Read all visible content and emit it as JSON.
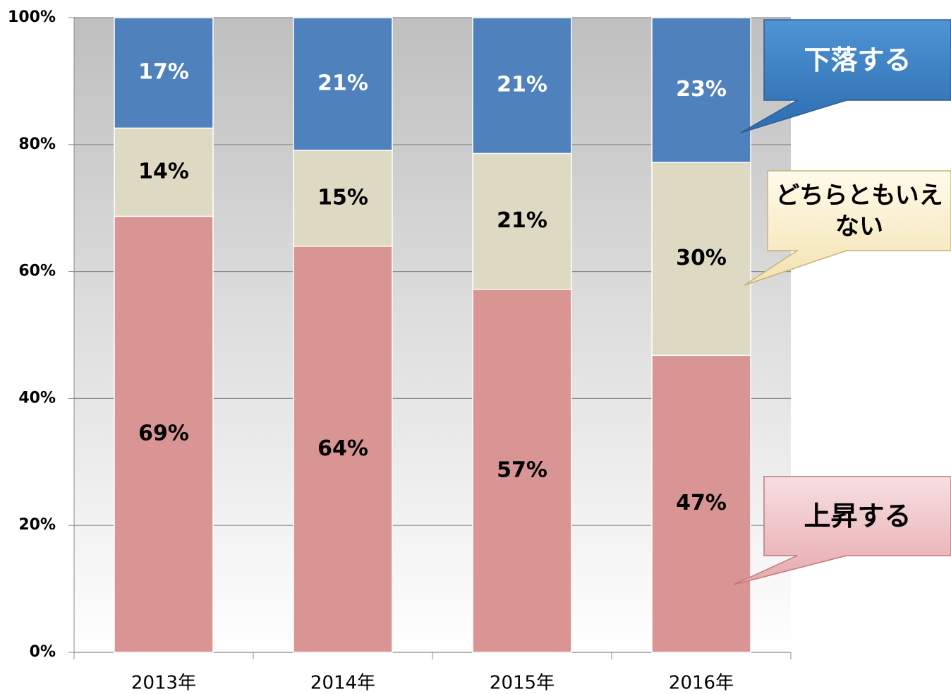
{
  "chart_data": {
    "type": "stacked_bar",
    "categories": [
      "2013年",
      "2014年",
      "2015年",
      "2016年"
    ],
    "series": [
      {
        "name": "上昇する",
        "color": "#d99594",
        "values": [
          68.7,
          64.0,
          57.2,
          46.8
        ],
        "value_labels": [
          "69%",
          "64%",
          "57%",
          "47%"
        ]
      },
      {
        "name": "どちらともいえない",
        "color": "#ddd9c3",
        "values": [
          13.9,
          15.1,
          21.4,
          30.4
        ],
        "value_labels": [
          "14%",
          "15%",
          "21%",
          "30%"
        ]
      },
      {
        "name": "下落する",
        "color": "#4f81bd",
        "values": [
          17.4,
          20.9,
          21.4,
          22.8
        ],
        "value_labels": [
          "17%",
          "21%",
          "21%",
          "23%"
        ]
      }
    ],
    "ylim": [
      0,
      100
    ],
    "yticks": [
      {
        "value": 0,
        "label": "0%"
      },
      {
        "value": 20,
        "label": "20%"
      },
      {
        "value": 40,
        "label": "40%"
      },
      {
        "value": 60,
        "label": "60%"
      },
      {
        "value": 80,
        "label": "80%"
      },
      {
        "value": 100,
        "label": "100%"
      }
    ],
    "grid": true
  }
}
